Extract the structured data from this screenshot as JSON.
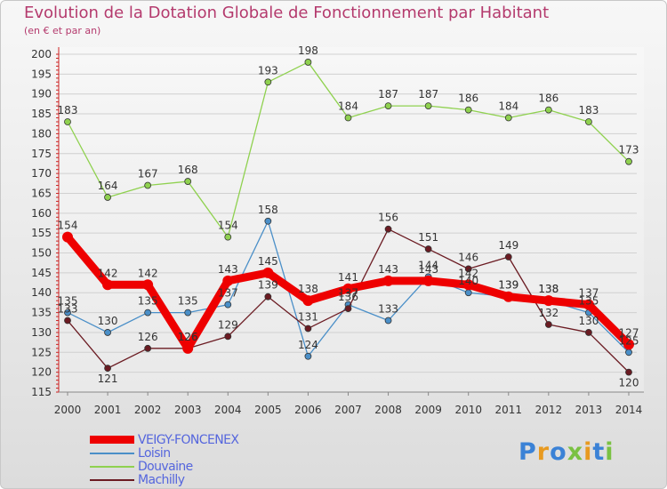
{
  "title": "Evolution de la Dotation Globale de Fonctionnement par Habitant",
  "subtitle": "(en € et par an)",
  "logo": {
    "text": [
      "P",
      "r",
      "o",
      "x",
      "i",
      "t",
      "i"
    ],
    "colors": [
      "#3b82d6",
      "#e89a20",
      "#3b82d6",
      "#7ac142",
      "#e89a20",
      "#3b82d6",
      "#7ac142"
    ]
  },
  "chart_data": {
    "type": "line",
    "x": [
      "2000",
      "2001",
      "2002",
      "2003",
      "2004",
      "2005",
      "2006",
      "2007",
      "2008",
      "2009",
      "2010",
      "2011",
      "2012",
      "2013",
      "2014"
    ],
    "ylim": [
      115,
      200
    ],
    "yticks": [
      115,
      120,
      125,
      130,
      135,
      140,
      145,
      150,
      155,
      160,
      165,
      170,
      175,
      180,
      185,
      190,
      195,
      200
    ],
    "series": [
      {
        "name": "VEIGY-FONCENEX",
        "color": "#ee0000",
        "values": [
          154,
          142,
          142,
          126,
          143,
          145,
          138,
          141,
          143,
          143,
          142,
          139,
          138,
          137,
          127
        ],
        "labels": [
          "154",
          "142",
          "142",
          "126",
          "143",
          "145",
          "138",
          "141",
          "143",
          "143",
          "142",
          "139",
          "138",
          "137",
          "127"
        ]
      },
      {
        "name": "Loisin",
        "color": "#4a8fc8",
        "values": [
          135,
          130,
          135,
          135,
          137,
          158,
          124,
          137,
          133,
          144,
          140,
          139,
          138,
          135,
          125
        ],
        "labels": [
          "135",
          "130",
          "135",
          "135",
          "137",
          "158",
          "124",
          "137",
          "133",
          "144",
          "140",
          "139",
          "138",
          "135",
          "125"
        ]
      },
      {
        "name": "Douvaine",
        "color": "#8fd14f",
        "values": [
          183,
          164,
          167,
          168,
          154,
          193,
          198,
          184,
          187,
          187,
          186,
          184,
          186,
          183,
          173
        ],
        "labels": [
          "183",
          "164",
          "167",
          "168",
          "154",
          "193",
          "198",
          "184",
          "187",
          "187",
          "186",
          "184",
          "186",
          "183",
          "173"
        ]
      },
      {
        "name": "Machilly",
        "color": "#6b1b22",
        "values": [
          133,
          121,
          126,
          126,
          129,
          139,
          131,
          136,
          156,
          151,
          146,
          149,
          132,
          130,
          120
        ],
        "labels": [
          "133",
          "121",
          "126",
          "126",
          "129",
          "139",
          "131",
          "136",
          "156",
          "151",
          "146",
          "149",
          "132",
          "130",
          "120"
        ]
      }
    ]
  }
}
